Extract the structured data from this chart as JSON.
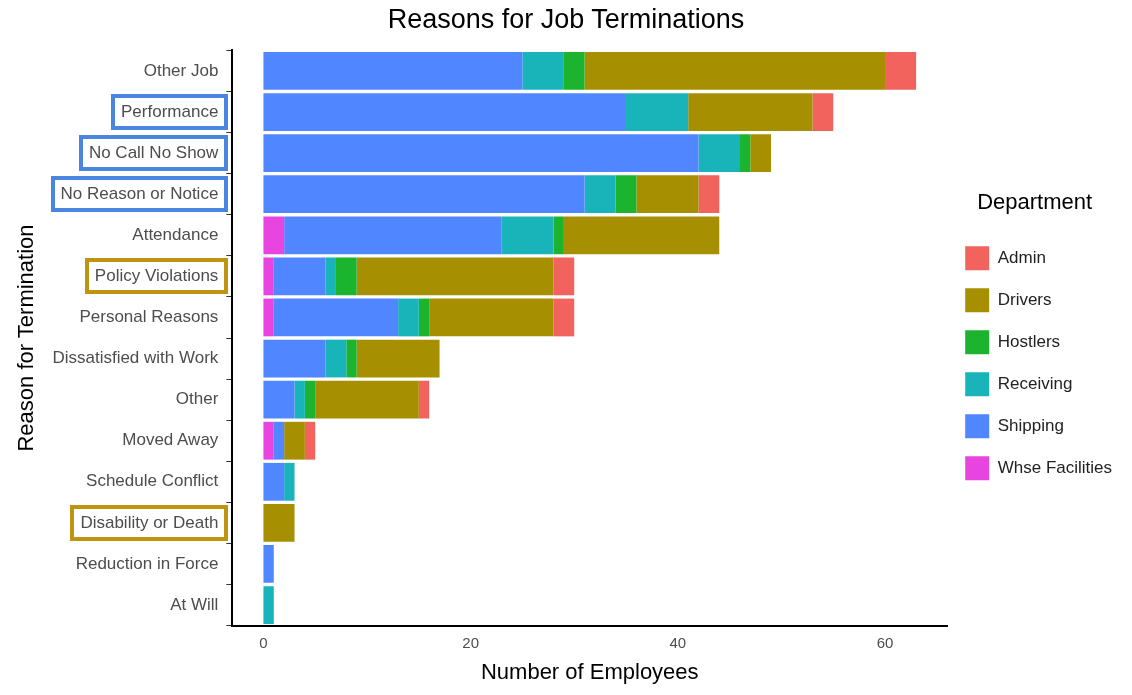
{
  "chart_data": {
    "type": "bar",
    "orientation": "horizontal",
    "stacked": true,
    "title": "Reasons for Job Terminations",
    "xlabel": "Number of Employees",
    "ylabel": "Reason for Termination",
    "legend_title": "Department",
    "legend": "right",
    "grid": false,
    "categories": [
      "Other Job",
      "Performance",
      "No Call No Show",
      "No Reason or Notice",
      "Attendance",
      "Policy Violations",
      "Personal Reasons",
      "Dissatisfied with Work",
      "Other",
      "Moved Away",
      "Schedule Conflict",
      "Disability or Death",
      "Reduction in Force",
      "At Will"
    ],
    "xlim": [
      -3,
      66
    ],
    "xticks": [
      0,
      20,
      40,
      60
    ],
    "series": [
      {
        "name": "Whse Facilities",
        "color": "#e844e0",
        "values": [
          0,
          0,
          0,
          0,
          2,
          1,
          1,
          0,
          0,
          1,
          0,
          0,
          0,
          0
        ]
      },
      {
        "name": "Shipping",
        "color": "#5086ff",
        "values": [
          25,
          35,
          42,
          31,
          21,
          5,
          12,
          6,
          3,
          1,
          2,
          0,
          1,
          0
        ]
      },
      {
        "name": "Receiving",
        "color": "#19b4b9",
        "values": [
          4,
          6,
          4,
          3,
          5,
          1,
          2,
          2,
          1,
          0,
          1,
          0,
          0,
          1
        ]
      },
      {
        "name": "Hostlers",
        "color": "#1cb42e",
        "values": [
          2,
          0,
          1,
          2,
          1,
          2,
          1,
          1,
          1,
          0,
          0,
          0,
          0,
          0
        ]
      },
      {
        "name": "Drivers",
        "color": "#a68f00",
        "values": [
          29,
          12,
          2,
          6,
          15,
          19,
          12,
          8,
          10,
          2,
          0,
          3,
          0,
          0
        ]
      },
      {
        "name": "Admin",
        "color": "#f2635d",
        "values": [
          3,
          2,
          0,
          2,
          0,
          2,
          2,
          0,
          1,
          1,
          0,
          0,
          0,
          0
        ]
      }
    ]
  }
}
